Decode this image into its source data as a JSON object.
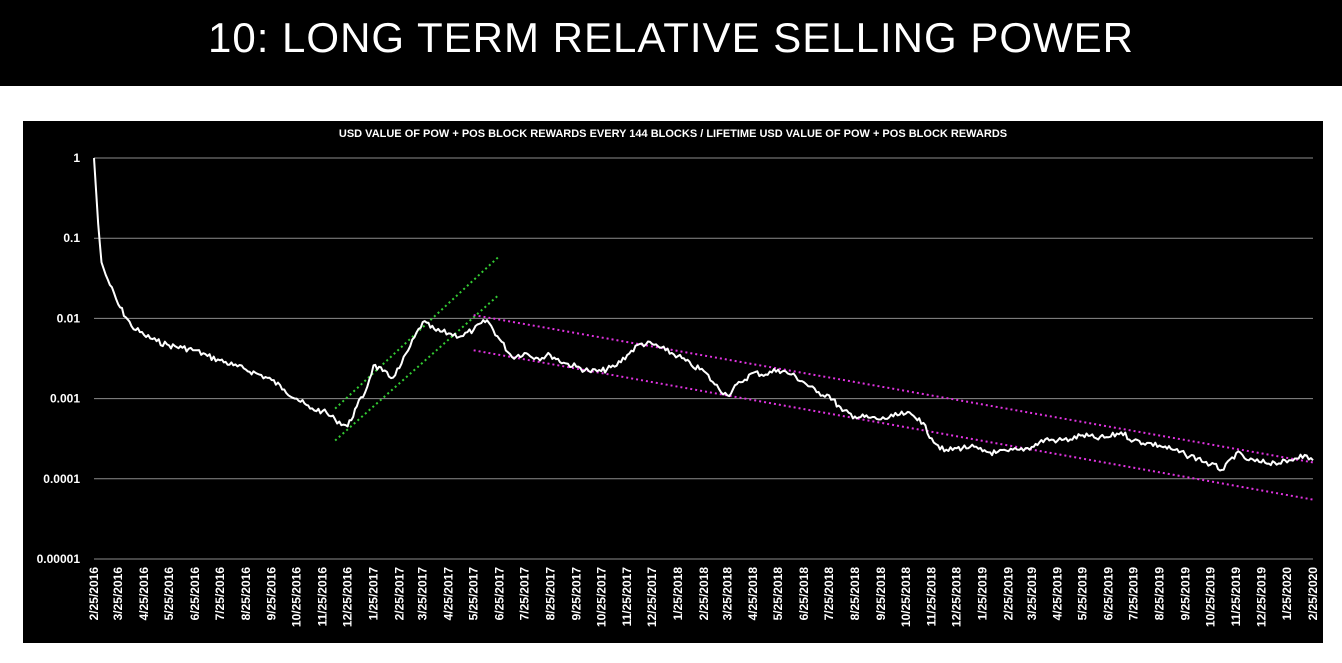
{
  "slide": {
    "title": "10: LONG TERM RELATIVE SELLING POWER"
  },
  "colors": {
    "background": "#000000",
    "series": "#ffffff",
    "gridline": "#8c8c8c",
    "green_channel": "#33cc33",
    "magenta_channel": "#e033e0"
  },
  "chart_data": {
    "type": "line",
    "title": "USD VALUE OF POW + POS BLOCK REWARDS EVERY 144 BLOCKS / LIFETIME USD VALUE OF POW + POS BLOCK REWARDS",
    "xlabel": "",
    "ylabel": "",
    "y_scale": "log",
    "ylim": [
      1e-05,
      1
    ],
    "y_ticks": [
      1,
      0.1,
      0.01,
      0.001,
      0.0001,
      1e-05
    ],
    "y_tick_labels": [
      "1",
      "0.1",
      "0.01",
      "0.001",
      "0.0001",
      "0.00001"
    ],
    "x_tick_labels": [
      "2/25/2016",
      "3/25/2016",
      "4/25/2016",
      "5/25/2016",
      "6/25/2016",
      "7/25/2016",
      "8/25/2016",
      "9/25/2016",
      "10/25/2016",
      "11/25/2016",
      "12/25/2016",
      "1/25/2017",
      "2/25/2017",
      "3/25/2017",
      "4/25/2017",
      "5/25/2017",
      "6/25/2017",
      "7/25/2017",
      "8/25/2017",
      "9/25/2017",
      "10/25/2017",
      "11/25/2017",
      "12/25/2017",
      "1/25/2018",
      "2/25/2018",
      "3/25/2018",
      "4/25/2018",
      "5/25/2018",
      "6/25/2018",
      "7/25/2018",
      "8/25/2018",
      "9/25/2018",
      "10/25/2018",
      "11/25/2018",
      "12/25/2018",
      "1/25/2019",
      "2/25/2019",
      "3/25/2019",
      "4/25/2019",
      "5/25/2019",
      "6/25/2019",
      "7/25/2019",
      "8/25/2019",
      "9/25/2019",
      "10/25/2019",
      "11/25/2019",
      "12/25/2019",
      "1/25/2020",
      "2/25/2020"
    ],
    "grid": true,
    "legend": "none",
    "series": [
      {
        "x": [
          "2/25/2016",
          "3/1/2016",
          "3/5/2016",
          "3/10/2016",
          "3/25/2016",
          "4/10/2016",
          "4/25/2016",
          "5/10/2016",
          "5/25/2016",
          "6/10/2016",
          "6/25/2016",
          "7/10/2016",
          "7/25/2016",
          "8/10/2016",
          "8/25/2016",
          "9/10/2016",
          "9/25/2016",
          "10/10/2016",
          "10/25/2016",
          "11/10/2016",
          "11/25/2016",
          "12/10/2016",
          "12/25/2016",
          "1/5/2017",
          "1/15/2017",
          "1/25/2017",
          "2/5/2017",
          "2/15/2017",
          "2/25/2017",
          "3/10/2017",
          "3/25/2017",
          "4/10/2017",
          "4/25/2017",
          "5/10/2017",
          "5/25/2017",
          "6/10/2017",
          "6/25/2017",
          "7/10/2017",
          "7/25/2017",
          "8/10/2017",
          "8/25/2017",
          "9/10/2017",
          "9/25/2017",
          "10/10/2017",
          "10/25/2017",
          "11/10/2017",
          "11/25/2017",
          "12/10/2017",
          "12/25/2017",
          "1/10/2018",
          "1/25/2018",
          "2/10/2018",
          "2/25/2018",
          "3/10/2018",
          "3/25/2018",
          "4/10/2018",
          "4/25/2018",
          "5/10/2018",
          "5/25/2018",
          "6/10/2018",
          "6/25/2018",
          "7/10/2018",
          "7/25/2018",
          "8/10/2018",
          "8/25/2018",
          "9/10/2018",
          "9/25/2018",
          "10/10/2018",
          "10/25/2018",
          "11/10/2018",
          "11/25/2018",
          "12/10/2018",
          "12/25/2018",
          "1/10/2019",
          "1/25/2019",
          "2/10/2019",
          "2/25/2019",
          "3/10/2019",
          "3/25/2019",
          "4/10/2019",
          "4/25/2019",
          "5/10/2019",
          "5/25/2019",
          "6/10/2019",
          "6/25/2019",
          "7/10/2019",
          "7/25/2019",
          "8/10/2019",
          "8/25/2019",
          "9/10/2019",
          "9/25/2019",
          "10/10/2019",
          "10/25/2019",
          "11/10/2019",
          "11/25/2019",
          "12/10/2019",
          "12/25/2019",
          "1/10/2020",
          "1/25/2020",
          "2/10/2020",
          "2/25/2020"
        ],
        "y": [
          1,
          0.15,
          0.05,
          0.035,
          0.015,
          0.008,
          0.0062,
          0.0052,
          0.0046,
          0.0043,
          0.004,
          0.0034,
          0.003,
          0.0026,
          0.0023,
          0.002,
          0.0017,
          0.0013,
          0.001,
          0.00075,
          0.0007,
          0.00055,
          0.00045,
          0.0008,
          0.0012,
          0.0026,
          0.0022,
          0.0018,
          0.0024,
          0.0045,
          0.009,
          0.007,
          0.0065,
          0.006,
          0.0072,
          0.0095,
          0.0055,
          0.0033,
          0.0037,
          0.0032,
          0.0035,
          0.0028,
          0.0025,
          0.0022,
          0.0022,
          0.0025,
          0.0035,
          0.0048,
          0.0048,
          0.004,
          0.0034,
          0.0026,
          0.0022,
          0.0015,
          0.0011,
          0.0016,
          0.0021,
          0.002,
          0.0023,
          0.002,
          0.0016,
          0.0012,
          0.0011,
          0.0007,
          0.0006,
          0.00058,
          0.00055,
          0.0006,
          0.00065,
          0.00057,
          0.00032,
          0.00022,
          0.00024,
          0.00025,
          0.00022,
          0.00021,
          0.00022,
          0.00023,
          0.00025,
          0.00031,
          0.0003,
          0.00031,
          0.00035,
          0.00032,
          0.00033,
          0.00038,
          0.0003,
          0.00028,
          0.00026,
          0.00023,
          0.0002,
          0.00018,
          0.00015,
          0.00013,
          0.00021,
          0.00017,
          0.00016,
          0.00016,
          0.00016,
          0.0002,
          0.00017
        ]
      }
    ],
    "trend_lines": [
      {
        "color": "green",
        "style": "dotted",
        "from": {
          "x": "12/10/2016",
          "y": 0.00075
        },
        "to": {
          "x": "6/25/2017",
          "y": 0.06
        }
      },
      {
        "color": "green",
        "style": "dotted",
        "from": {
          "x": "12/10/2016",
          "y": 0.0003
        },
        "to": {
          "x": "6/25/2017",
          "y": 0.02
        }
      },
      {
        "color": "magenta",
        "style": "dotted",
        "from": {
          "x": "5/25/2017",
          "y": 0.011
        },
        "to": {
          "x": "2/25/2020",
          "y": 0.00016
        }
      },
      {
        "color": "magenta",
        "style": "dotted",
        "from": {
          "x": "5/25/2017",
          "y": 0.004
        },
        "to": {
          "x": "2/25/2020",
          "y": 5.5e-05
        }
      }
    ]
  }
}
